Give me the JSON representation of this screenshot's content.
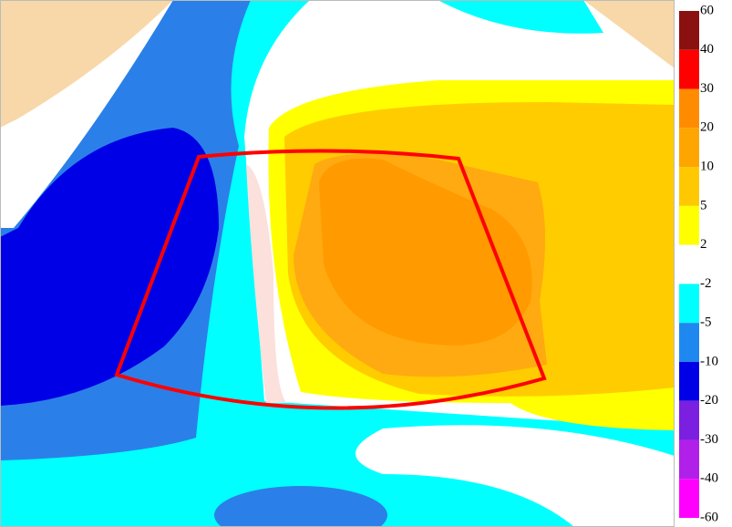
{
  "colorbar": {
    "ticks": [
      60,
      40,
      30,
      20,
      10,
      5,
      2,
      -2,
      -5,
      -10,
      -20,
      -30,
      -40,
      -60
    ],
    "colors": [
      "#8b1010",
      "#ff0000",
      "#ff8c00",
      "#ffa500",
      "#ffc800",
      "#ffff00",
      "#ffffff",
      "#00ffff",
      "#1e88f0",
      "#0000e6",
      "#7b1fe0",
      "#b020e8",
      "#ff00ff"
    ]
  }
}
